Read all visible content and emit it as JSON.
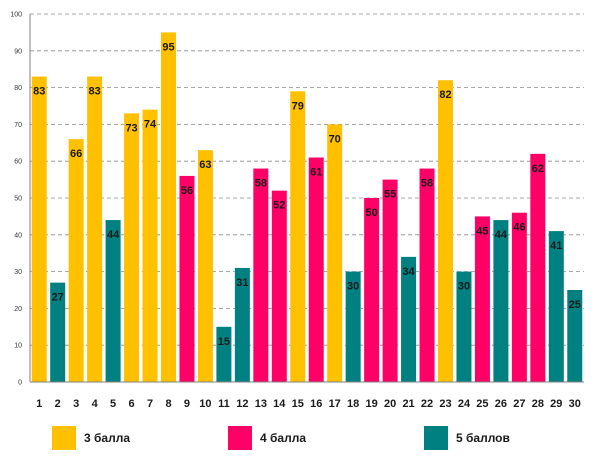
{
  "chart_data": {
    "type": "bar",
    "categories": [
      "1",
      "2",
      "3",
      "4",
      "5",
      "6",
      "7",
      "8",
      "9",
      "10",
      "11",
      "12",
      "13",
      "14",
      "15",
      "16",
      "17",
      "18",
      "19",
      "20",
      "21",
      "22",
      "23",
      "24",
      "25",
      "26",
      "27",
      "28",
      "29",
      "30"
    ],
    "values": [
      83,
      27,
      66,
      83,
      44,
      73,
      74,
      95,
      56,
      63,
      15,
      31,
      58,
      52,
      79,
      61,
      70,
      30,
      50,
      55,
      34,
      58,
      82,
      30,
      45,
      44,
      46,
      62,
      41,
      25
    ],
    "bar_group": [
      0,
      2,
      0,
      0,
      2,
      0,
      0,
      0,
      1,
      0,
      2,
      2,
      1,
      1,
      0,
      1,
      0,
      2,
      1,
      1,
      2,
      1,
      0,
      2,
      1,
      2,
      1,
      1,
      2,
      2
    ],
    "groups": [
      {
        "name": "3 балла",
        "color": "#FFC000"
      },
      {
        "name": "4 балла",
        "color": "#FF0066"
      },
      {
        "name": "5 баллов",
        "color": "#008080"
      }
    ],
    "yticks": [
      0,
      10,
      20,
      30,
      40,
      50,
      60,
      70,
      80,
      90,
      100
    ],
    "ylim": [
      0,
      100
    ],
    "grid": true,
    "legend_position": "bottom",
    "title": "",
    "xlabel": "",
    "ylabel": ""
  }
}
